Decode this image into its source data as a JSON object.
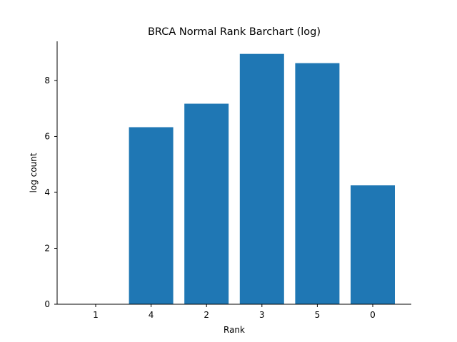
{
  "chart_data": {
    "type": "bar",
    "title": "BRCA Normal Rank Barchart (log)",
    "xlabel": "Rank",
    "ylabel": "log count",
    "categories": [
      "1",
      "4",
      "2",
      "3",
      "5",
      "0"
    ],
    "values": [
      0,
      6.33,
      7.17,
      8.95,
      8.62,
      4.25
    ],
    "ylim": [
      0,
      9.4
    ],
    "yticks": [
      0,
      2,
      4,
      6,
      8
    ],
    "grid": false,
    "legend": "none",
    "bar_color": "#1f77b4"
  }
}
